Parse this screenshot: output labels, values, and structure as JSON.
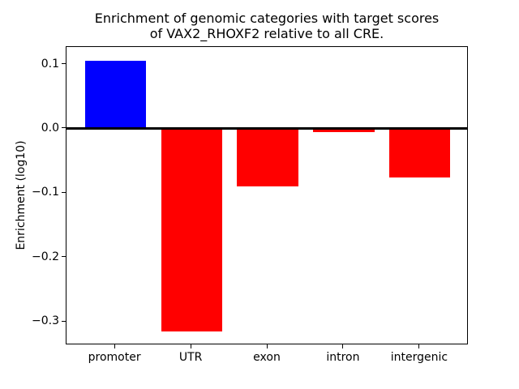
{
  "chart_data": {
    "type": "bar",
    "title": "Enrichment of genomic categories with target scores\nof VAX2_RHOXF2 relative to all CRE.",
    "ylabel": "Enrichment (log10)",
    "xlabel": "",
    "categories": [
      "promoter",
      "UTR",
      "exon",
      "intron",
      "intergenic"
    ],
    "values": [
      0.106,
      -0.315,
      -0.09,
      -0.005,
      -0.076
    ],
    "bar_colors": [
      "#0000ff",
      "#ff0000",
      "#ff0000",
      "#ff0000",
      "#ff0000"
    ],
    "positive_color": "#0000ff",
    "negative_color": "#ff0000",
    "ylim": [
      -0.336,
      0.127
    ],
    "yticks": [
      0.1,
      0.0,
      -0.1,
      -0.2,
      -0.3
    ],
    "ytick_labels": [
      "0.1",
      "0.0",
      "−0.1",
      "−0.2",
      "−0.3"
    ],
    "bar_width_fraction": 0.8,
    "zero_line": true,
    "grid": false,
    "legend": "none",
    "axis_color": "#000000",
    "background_color": "#ffffff"
  }
}
